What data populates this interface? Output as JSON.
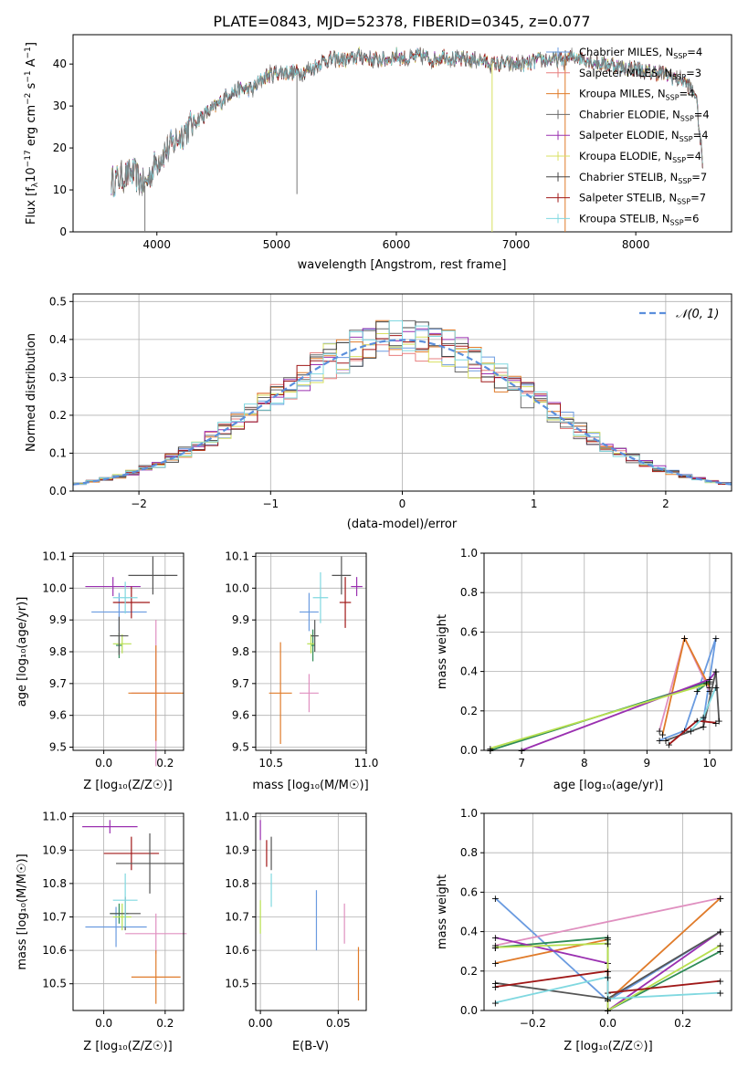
{
  "title": "PLATE=0843, MJD=52378, FIBERID=0345, z=0.077",
  "colors": {
    "Chabrier MILES": "#6a9be0",
    "Salpeter MILES": "#e77f7f",
    "Kroupa MILES": "#e07b2a",
    "Chabrier ELODIE": "#6a6a6a",
    "Salpeter ELODIE": "#9a30b0",
    "Kroupa ELODIE": "#d8e060",
    "Chabrier STELIB": "#454545",
    "Salpeter STELIB": "#a01818",
    "Kroupa STELIB": "#80d8e0",
    "Chabrier MILES age": "#6a9be0",
    "Salpeter MILES age": "#e090c0",
    "Kroupa MILES age": "#e07b2a",
    "Chabrier ELODIE age": "#2e8b57",
    "Salpeter ELODIE age": "#9a30b0",
    "Kroupa ELODIE age": "#b8e050",
    "Chabrier STELIB age": "#555555",
    "Salpeter STELIB age": "#a01818",
    "Kroupa STELIB age": "#80d8e0"
  },
  "chart_data": [
    {
      "type": "line",
      "title": "PLATE=0843, MJD=52378, FIBERID=0345, z=0.077",
      "xlabel": "wavelength [Angstrom, rest frame]",
      "ylabel": "Flux [f",
      "xticks": [
        "4000",
        "5000",
        "6000",
        "7000",
        "8000"
      ],
      "yticks": [
        "0",
        "10",
        "20",
        "30",
        "40"
      ],
      "xlim": [
        3300,
        8800
      ],
      "ylim": [
        0,
        47
      ],
      "legend": "top-right",
      "legend_entries": [
        {
          "label": "Chabrier MILES, N",
          "sub": "SSP",
          "value": "=4"
        },
        {
          "label": "Salpeter MILES, N",
          "sub": "SSP",
          "value": "=3"
        },
        {
          "label": "Kroupa MILES, N",
          "sub": "SSP",
          "value": "=4"
        },
        {
          "label": "Chabrier ELODIE, N",
          "sub": "SSP",
          "value": "=4"
        },
        {
          "label": "Salpeter ELODIE, N",
          "sub": "SSP",
          "value": "=4"
        },
        {
          "label": "Kroupa ELODIE, N",
          "sub": "SSP",
          "value": "=4"
        },
        {
          "label": "Chabrier STELIB, N",
          "sub": "SSP",
          "value": "=7"
        },
        {
          "label": "Salpeter STELIB, N",
          "sub": "SSP",
          "value": "=7"
        },
        {
          "label": "Kroupa STELIB, N",
          "sub": "SSP",
          "value": "=6"
        }
      ],
      "spectrum_anchors": {
        "wavelength": [
          3620,
          3700,
          3800,
          3900,
          3950,
          4000,
          4100,
          4200,
          4300,
          4400,
          4500,
          4600,
          4700,
          4800,
          4900,
          5000,
          5100,
          5200,
          5300,
          5400,
          5500,
          5600,
          5700,
          5800,
          5900,
          6000,
          6100,
          6200,
          6300,
          6400,
          6500,
          6600,
          6700,
          6800,
          6900,
          7000,
          7100,
          7200,
          7300,
          7400,
          7500,
          7600,
          7700,
          7800,
          7900,
          8000,
          8100,
          8200,
          8300,
          8400,
          8500,
          8560
        ],
        "flux": [
          12,
          13,
          14,
          11,
          14,
          17,
          20,
          23,
          26,
          28,
          30,
          33,
          34,
          34,
          37,
          38,
          38,
          38,
          39,
          41,
          41,
          41,
          42,
          41,
          41,
          42,
          41,
          42,
          41,
          42,
          41,
          41,
          41,
          40,
          40,
          40,
          40,
          41,
          41,
          41,
          42,
          41,
          40,
          40,
          39,
          39,
          38,
          38,
          37,
          36,
          33,
          16
        ]
      },
      "dropouts": [
        {
          "wavelength": 3900,
          "flux": 0
        },
        {
          "wavelength": 5170,
          "flux": 9
        },
        {
          "wavelength": 6800,
          "flux": 0
        },
        {
          "wavelength": 7410,
          "flux": 0
        }
      ]
    },
    {
      "type": "histogram",
      "xlabel": "(data-model)/error",
      "ylabel": "Normed distribution",
      "xticks": [
        "−2",
        "−1",
        "0",
        "1",
        "2"
      ],
      "yticks": [
        "0.0",
        "0.1",
        "0.2",
        "0.3",
        "0.4",
        "0.5"
      ],
      "xlim": [
        -2.5,
        2.5
      ],
      "ylim": [
        0,
        0.52
      ],
      "grid": true,
      "legend": "top-right",
      "reference_label": "𝒩(0, 1)",
      "reference_color": "#5b8fdc"
    },
    {
      "type": "scatter",
      "panel": "Z-age",
      "xlabel": "Z [log₁₀(Z/Z☉)]",
      "ylabel": "age  [log₁₀(age/yr)]",
      "xticks": [
        "0.0",
        "0.2"
      ],
      "yticks": [
        "9.5",
        "9.6",
        "9.7",
        "9.8",
        "9.9",
        "10.0",
        "10.1"
      ],
      "xlim": [
        -0.1,
        0.26
      ],
      "ylim": [
        9.49,
        10.11
      ],
      "points": [
        {
          "model": "Chabrier MILES age",
          "x": 0.05,
          "y": 9.925,
          "xerr": 0.09,
          "yerr": 0.06
        },
        {
          "model": "Salpeter MILES age",
          "x": 0.17,
          "y": 9.67,
          "xerr": 0.08,
          "yerr": 0.23
        },
        {
          "model": "Kroupa MILES age",
          "x": 0.17,
          "y": 9.67,
          "xerr": 0.09,
          "yerr": 0.15
        },
        {
          "model": "Chabrier ELODIE age",
          "x": 0.05,
          "y": 9.82,
          "xerr": 0.01,
          "yerr": 0.04
        },
        {
          "model": "Salpeter ELODIE age",
          "x": 0.03,
          "y": 10.005,
          "xerr": 0.09,
          "yerr": 0.03
        },
        {
          "model": "Kroupa ELODIE age",
          "x": 0.06,
          "y": 9.825,
          "xerr": 0.03,
          "yerr": 0.03
        },
        {
          "model": "Chabrier STELIB age",
          "x": 0.05,
          "y": 9.85,
          "xerr": 0.03,
          "yerr": 0.06
        },
        {
          "model": "Salpeter STELIB age",
          "x": 0.09,
          "y": 9.955,
          "xerr": 0.06,
          "yerr": 0.05
        },
        {
          "model": "Chabrier STELIB age",
          "x": 0.16,
          "y": 10.04,
          "xerr": 0.08,
          "yerr": 0.06
        },
        {
          "model": "Kroupa STELIB age",
          "x": 0.07,
          "y": 9.97,
          "xerr": 0.04,
          "yerr": 0.05
        }
      ]
    },
    {
      "type": "scatter",
      "panel": "mass-age",
      "xlabel": "mass [log₁₀(M/M☉)]",
      "yticks": [
        "9.5",
        "9.6",
        "9.7",
        "9.8",
        "9.9",
        "10.0",
        "10.1"
      ],
      "xticks": [
        "10.5",
        "11.0"
      ],
      "xlim": [
        10.42,
        11.0
      ],
      "ylim": [
        9.49,
        10.11
      ]
    },
    {
      "type": "line",
      "panel": "age-weight",
      "xlabel": "age  [log₁₀(age/yr)]",
      "ylabel": "mass weight",
      "xticks": [
        "7",
        "8",
        "9",
        "10"
      ],
      "yticks": [
        "0.0",
        "0.2",
        "0.4",
        "0.6",
        "0.8",
        "1.0"
      ],
      "xlim": [
        6.4,
        10.35
      ],
      "ylim": [
        0,
        1
      ],
      "grid": true
    },
    {
      "type": "scatter",
      "panel": "Z-mass",
      "xlabel": "Z [log₁₀(Z/Z☉)]",
      "ylabel": "mass [log₁₀(M/M☉)]",
      "xticks": [
        "0.0",
        "0.2"
      ],
      "yticks": [
        "10.5",
        "10.6",
        "10.7",
        "10.8",
        "10.9",
        "11.0"
      ],
      "xlim": [
        -0.1,
        0.26
      ],
      "ylim": [
        10.42,
        11.01
      ]
    },
    {
      "type": "scatter",
      "panel": "EBV-mass",
      "xlabel": "E(B-V)",
      "xticks": [
        "0.00",
        "0.05"
      ],
      "yticks": [
        "10.5",
        "10.6",
        "10.7",
        "10.8",
        "10.9",
        "11.0"
      ],
      "xlim": [
        -0.003,
        0.068
      ],
      "ylim": [
        10.42,
        11.01
      ]
    },
    {
      "type": "line",
      "panel": "Z-weight",
      "xlabel": "Z [log₁₀(Z/Z☉)]",
      "ylabel": "mass weight",
      "xticks": [
        "−0.2",
        "0.0",
        "0.2"
      ],
      "yticks": [
        "0.0",
        "0.2",
        "0.4",
        "0.6",
        "0.8",
        "1.0"
      ],
      "xlim": [
        -0.33,
        0.33
      ],
      "ylim": [
        0,
        1
      ],
      "grid": true
    }
  ]
}
